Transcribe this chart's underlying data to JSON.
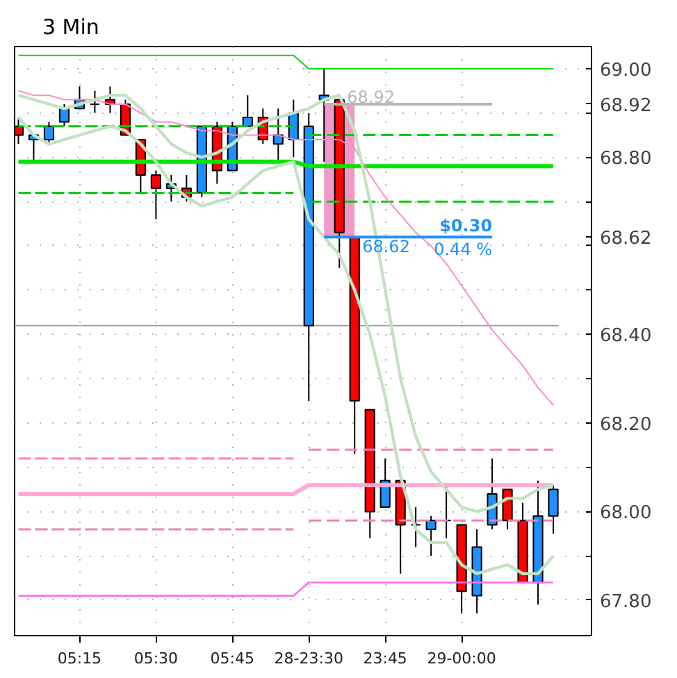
{
  "chart_data": {
    "type": "candlestick",
    "title": "3 Min",
    "categories": [
      null,
      null,
      null,
      null,
      "05:15",
      null,
      null,
      null,
      null,
      "05:30",
      null,
      null,
      null,
      null,
      "05:45",
      null,
      null,
      null,
      null,
      "28-23:30",
      null,
      null,
      null,
      null,
      "23:45",
      null,
      null,
      null,
      null,
      "29-00:00",
      null,
      null,
      null,
      null,
      null,
      null
    ],
    "ohlc": [
      [
        68.87,
        68.89,
        68.83,
        68.85
      ],
      [
        68.84,
        68.85,
        68.79,
        68.85
      ],
      [
        68.84,
        68.88,
        68.83,
        68.87
      ],
      [
        68.88,
        68.92,
        68.87,
        68.91
      ],
      [
        68.91,
        68.96,
        68.91,
        68.93
      ],
      [
        68.92,
        68.95,
        68.9,
        68.92
      ],
      [
        68.93,
        68.96,
        68.9,
        68.92
      ],
      [
        68.92,
        68.93,
        68.85,
        68.85
      ],
      [
        68.84,
        68.84,
        68.72,
        68.76
      ],
      [
        68.76,
        68.77,
        68.66,
        68.73
      ],
      [
        68.73,
        68.76,
        68.7,
        68.74
      ],
      [
        68.73,
        68.76,
        68.7,
        68.71
      ],
      [
        68.72,
        68.87,
        68.71,
        68.87
      ],
      [
        68.87,
        68.88,
        68.74,
        68.77
      ],
      [
        68.77,
        68.88,
        68.77,
        68.87
      ],
      [
        68.87,
        68.94,
        68.87,
        68.89
      ],
      [
        68.89,
        68.91,
        68.83,
        68.84
      ],
      [
        68.83,
        68.91,
        68.79,
        68.85
      ],
      [
        68.84,
        68.93,
        68.8,
        68.9
      ],
      [
        68.42,
        68.9,
        68.25,
        68.87
      ],
      [
        68.93,
        69.0,
        68.79,
        68.94
      ],
      [
        68.93,
        68.93,
        68.55,
        68.63
      ],
      [
        68.62,
        68.62,
        68.13,
        68.25
      ],
      [
        68.23,
        68.23,
        67.94,
        68.0
      ],
      [
        68.01,
        68.12,
        68.01,
        68.07
      ],
      [
        68.07,
        68.08,
        67.86,
        67.97
      ],
      [
        67.97,
        68.01,
        67.92,
        67.97
      ],
      [
        67.96,
        67.99,
        67.9,
        67.98
      ],
      [
        67.98,
        68.06,
        67.94,
        67.98
      ],
      [
        67.97,
        67.97,
        67.77,
        67.82
      ],
      [
        67.81,
        67.96,
        67.77,
        67.92
      ],
      [
        67.97,
        68.12,
        67.96,
        68.04
      ],
      [
        68.05,
        68.05,
        67.96,
        67.98
      ],
      [
        67.98,
        68.02,
        67.84,
        67.84
      ],
      [
        67.84,
        68.07,
        67.79,
        67.99
      ],
      [
        67.99,
        68.06,
        67.95,
        68.05
      ]
    ],
    "colors": [
      "#ff0000",
      "#1e90ff",
      "#1e90ff",
      "#1e90ff",
      "#1e90ff",
      "#000000",
      "#ff0000",
      "#ff0000",
      "#ff0000",
      "#ff0000",
      "#1e90ff",
      "#ff0000",
      "#1e90ff",
      "#ff0000",
      "#1e90ff",
      "#1e90ff",
      "#ff0000",
      "#1e90ff",
      "#1e90ff",
      "#1e90ff",
      "#1e90ff",
      "#ff0000",
      "#ff0000",
      "#ff0000",
      "#1e90ff",
      "#ff0000",
      "#000000",
      "#1e90ff",
      "#000000",
      "#ff0000",
      "#1e90ff",
      "#1e90ff",
      "#ff0000",
      "#ff0000",
      "#1e90ff",
      "#1e90ff"
    ],
    "series": [
      {
        "type": "line",
        "color": "#00dd00",
        "line_style": "solid",
        "values": [
          69.03,
          69.03,
          69.03,
          69.03,
          69.03,
          69.03,
          69.03,
          69.03,
          69.03,
          69.03,
          69.03,
          69.03,
          69.03,
          69.03,
          69.03,
          69.03,
          69.03,
          69.03,
          69.03,
          69.0,
          69.0,
          69.0,
          69.0,
          69.0,
          69.0,
          69.0,
          69.0,
          69.0,
          69.0,
          69.0,
          69.0,
          69.0,
          69.0,
          69.0,
          69.0,
          69.0
        ]
      },
      {
        "type": "line",
        "color": "#00cc00",
        "line_style": "dashed",
        "values": [
          68.87,
          68.87,
          68.87,
          68.87,
          68.87,
          68.87,
          68.87,
          68.87,
          68.87,
          68.87,
          68.87,
          68.87,
          68.87,
          68.87,
          68.87,
          68.87,
          68.87,
          68.87,
          68.87,
          null,
          null,
          null,
          null,
          null,
          null,
          null,
          null,
          null,
          null,
          null,
          null,
          null,
          null,
          null,
          null,
          null
        ]
      },
      {
        "type": "line",
        "color": "#00cc00",
        "line_style": "dashed",
        "values": [
          null,
          null,
          null,
          null,
          null,
          null,
          null,
          null,
          null,
          null,
          null,
          null,
          null,
          null,
          null,
          null,
          null,
          null,
          null,
          68.85,
          68.85,
          68.85,
          68.85,
          68.85,
          68.85,
          68.85,
          68.85,
          68.85,
          68.85,
          68.85,
          68.85,
          68.85,
          68.85,
          68.85,
          68.85,
          68.85
        ]
      },
      {
        "type": "line",
        "color": "#00e600",
        "line_style": "solid",
        "values": [
          68.79,
          68.79,
          68.79,
          68.79,
          68.79,
          68.79,
          68.79,
          68.79,
          68.79,
          68.79,
          68.79,
          68.79,
          68.79,
          68.79,
          68.79,
          68.79,
          68.79,
          68.79,
          68.79,
          68.78,
          68.78,
          68.78,
          68.78,
          68.78,
          68.78,
          68.78,
          68.78,
          68.78,
          68.78,
          68.78,
          68.78,
          68.78,
          68.78,
          68.78,
          68.78,
          68.78
        ]
      },
      {
        "type": "line",
        "color": "#00cc00",
        "line_style": "dashed",
        "values": [
          68.72,
          68.72,
          68.72,
          68.72,
          68.72,
          68.72,
          68.72,
          68.72,
          68.72,
          68.72,
          68.72,
          68.72,
          68.72,
          68.72,
          68.72,
          68.72,
          68.72,
          68.72,
          68.72,
          null,
          null,
          null,
          null,
          null,
          null,
          null,
          null,
          null,
          null,
          null,
          null,
          null,
          null,
          null,
          null,
          null
        ]
      },
      {
        "type": "line",
        "color": "#00cc00",
        "line_style": "dashed",
        "values": [
          null,
          null,
          null,
          null,
          null,
          null,
          null,
          null,
          null,
          null,
          null,
          null,
          null,
          null,
          null,
          null,
          null,
          null,
          null,
          68.7,
          68.7,
          68.7,
          68.7,
          68.7,
          68.7,
          68.7,
          68.7,
          68.7,
          68.7,
          68.7,
          68.7,
          68.7,
          68.7,
          68.7,
          68.7,
          68.7
        ]
      },
      {
        "type": "line",
        "color": "#ff7fbf",
        "line_style": "dashed",
        "values": [
          68.12,
          68.12,
          68.12,
          68.12,
          68.12,
          68.12,
          68.12,
          68.12,
          68.12,
          68.12,
          68.12,
          68.12,
          68.12,
          68.12,
          68.12,
          68.12,
          68.12,
          68.12,
          68.12,
          null,
          null,
          null,
          null,
          null,
          null,
          null,
          null,
          null,
          null,
          null,
          null,
          null,
          null,
          null,
          null,
          null
        ]
      },
      {
        "type": "line",
        "color": "#ff7fbf",
        "line_style": "dashed",
        "values": [
          null,
          null,
          null,
          null,
          null,
          null,
          null,
          null,
          null,
          null,
          null,
          null,
          null,
          null,
          null,
          null,
          null,
          null,
          null,
          68.14,
          68.14,
          68.14,
          68.14,
          68.14,
          68.14,
          68.14,
          68.14,
          68.14,
          68.14,
          68.14,
          68.14,
          68.14,
          68.14,
          68.14,
          68.14,
          68.14
        ]
      },
      {
        "type": "line",
        "color": "#ffaad4",
        "line_style": "solid",
        "values": [
          68.04,
          68.04,
          68.04,
          68.04,
          68.04,
          68.04,
          68.04,
          68.04,
          68.04,
          68.04,
          68.04,
          68.04,
          68.04,
          68.04,
          68.04,
          68.04,
          68.04,
          68.04,
          68.04,
          68.06,
          68.06,
          68.06,
          68.06,
          68.06,
          68.06,
          68.06,
          68.06,
          68.06,
          68.06,
          68.06,
          68.06,
          68.06,
          68.06,
          68.06,
          68.06,
          68.06
        ]
      },
      {
        "type": "line",
        "color": "#f080b8",
        "line_style": "dashed",
        "values": [
          67.96,
          67.96,
          67.96,
          67.96,
          67.96,
          67.96,
          67.96,
          67.96,
          67.96,
          67.96,
          67.96,
          67.96,
          67.96,
          67.96,
          67.96,
          67.96,
          67.96,
          67.96,
          67.96,
          null,
          null,
          null,
          null,
          null,
          null,
          null,
          null,
          null,
          null,
          null,
          null,
          null,
          null,
          null,
          null,
          null
        ]
      },
      {
        "type": "line",
        "color": "#f080b8",
        "line_style": "dashed",
        "values": [
          null,
          null,
          null,
          null,
          null,
          null,
          null,
          null,
          null,
          null,
          null,
          null,
          null,
          null,
          null,
          null,
          null,
          null,
          null,
          67.98,
          67.98,
          67.98,
          67.98,
          67.98,
          67.98,
          67.98,
          67.98,
          67.98,
          67.98,
          67.98,
          67.98,
          67.98,
          67.98,
          67.98,
          67.98,
          67.98
        ]
      },
      {
        "type": "line",
        "color": "#ff70f0",
        "line_style": "solid",
        "values": [
          67.81,
          67.81,
          67.81,
          67.81,
          67.81,
          67.81,
          67.81,
          67.81,
          67.81,
          67.81,
          67.81,
          67.81,
          67.81,
          67.81,
          67.81,
          67.81,
          67.81,
          67.81,
          67.81,
          67.84,
          67.84,
          67.84,
          67.84,
          67.84,
          67.84,
          67.84,
          67.84,
          67.84,
          67.84,
          67.84,
          67.84,
          67.84,
          67.84,
          67.84,
          67.84,
          67.84
        ]
      },
      {
        "type": "line",
        "color": "#ff88cc",
        "line_style": "solid",
        "values": [
          68.95,
          68.94,
          68.94,
          68.93,
          68.93,
          68.93,
          68.92,
          68.92,
          68.9,
          68.88,
          68.88,
          68.87,
          68.86,
          68.86,
          68.85,
          68.85,
          68.85,
          68.85,
          68.84,
          68.84,
          68.84,
          68.84,
          68.82,
          68.76,
          68.71,
          68.67,
          68.63,
          68.6,
          68.56,
          68.51,
          68.46,
          68.41,
          68.37,
          68.33,
          68.28,
          68.24
        ]
      },
      {
        "type": "line",
        "color": "#c2e2c2",
        "line_style": "solid",
        "values": [
          68.94,
          68.93,
          68.92,
          68.91,
          68.92,
          68.93,
          68.94,
          68.94,
          68.91,
          68.87,
          68.83,
          68.81,
          68.8,
          68.81,
          68.83,
          68.86,
          68.88,
          68.89,
          68.9,
          68.91,
          68.93,
          68.94,
          68.86,
          68.7,
          68.5,
          68.3,
          68.17,
          68.09,
          68.05,
          68.01,
          68.0,
          68.01,
          68.03,
          68.03,
          68.05,
          68.06
        ]
      },
      {
        "type": "line",
        "color": "#c2e2c2",
        "line_style": "solid",
        "values": [
          68.89,
          68.85,
          68.83,
          68.84,
          68.85,
          68.86,
          68.87,
          68.86,
          68.83,
          68.79,
          68.74,
          68.71,
          68.69,
          68.7,
          68.71,
          68.74,
          68.77,
          68.78,
          68.79,
          68.66,
          68.62,
          68.58,
          68.5,
          68.4,
          68.26,
          68.08,
          67.96,
          67.93,
          67.93,
          67.88,
          67.86,
          67.87,
          67.88,
          67.86,
          67.86,
          67.9
        ]
      }
    ],
    "ylim": [
      67.72,
      69.05
    ],
    "yticks": [
      {
        "value": 67.8,
        "label": "67.80"
      },
      {
        "value": 67.9,
        "label": null
      },
      {
        "value": 68.0,
        "label": "68.00"
      },
      {
        "value": 68.1,
        "label": null
      },
      {
        "value": 68.2,
        "label": "68.20"
      },
      {
        "value": 68.3,
        "label": null
      },
      {
        "value": 68.4,
        "label": "68.40"
      },
      {
        "value": 68.5,
        "label": null
      },
      {
        "value": 68.6,
        "label": null
      },
      {
        "value": 68.62,
        "label": "68.62"
      },
      {
        "value": 68.7,
        "label": null
      },
      {
        "value": 68.8,
        "label": "68.80"
      },
      {
        "value": 68.9,
        "label": null
      },
      {
        "value": 68.92,
        "label": "68.92"
      },
      {
        "value": 69.0,
        "label": "69.00"
      }
    ],
    "ref_lines": [
      {
        "axis": "y",
        "value": 68.42,
        "color": "#a0a0a0"
      },
      {
        "axis": "y",
        "value": 68.92,
        "label": "68.92",
        "color": "#b8b8b8"
      },
      {
        "axis": "y",
        "value": 68.62,
        "label": "68.62",
        "color": "#1e90ff"
      }
    ],
    "bands": [
      {
        "axis": "y",
        "from": 68.62,
        "to": 68.92,
        "color": "#ee88c0"
      }
    ],
    "annotations": [
      {
        "text": "$0.30",
        "y": 68.62
      },
      {
        "text": "0.44 %",
        "y": 68.62
      }
    ],
    "grid": true
  }
}
